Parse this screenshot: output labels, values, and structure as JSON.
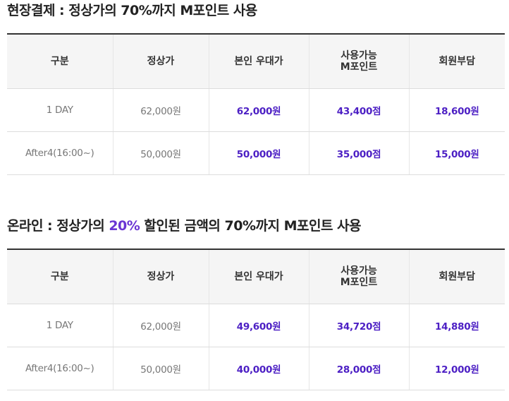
{
  "onsite": {
    "title": "현장결제 : 정상가의 70%까지 M포인트 사용",
    "headers": [
      "구분",
      "정상가",
      "본인 우대가",
      "사용가능",
      "M포인트",
      "회원부담"
    ],
    "rows": [
      {
        "type": "1 DAY",
        "regular": "62,000원",
        "member": "62,000원",
        "points": "43,400점",
        "pay": "18,600원"
      },
      {
        "type": "After4(16:00~)",
        "regular": "50,000원",
        "member": "50,000원",
        "points": "35,000점",
        "pay": "15,000원"
      }
    ]
  },
  "online": {
    "title_prefix": "온라인 : 정상가의 ",
    "title_highlight": "20%",
    "title_suffix": " 할인된 금액의 70%까지 M포인트 사용",
    "highlight_color": "#6a35d3",
    "headers": [
      "구분",
      "정상가",
      "본인 우대가",
      "사용가능",
      "M포인트",
      "회원부담"
    ],
    "rows": [
      {
        "type": "1 DAY",
        "regular": "62,000원",
        "member": "49,600원",
        "points": "34,720점",
        "pay": "14,880원"
      },
      {
        "type": "After4(16:00~)",
        "regular": "50,000원",
        "member": "40,000원",
        "points": "28,000점",
        "pay": "12,000원"
      }
    ]
  }
}
